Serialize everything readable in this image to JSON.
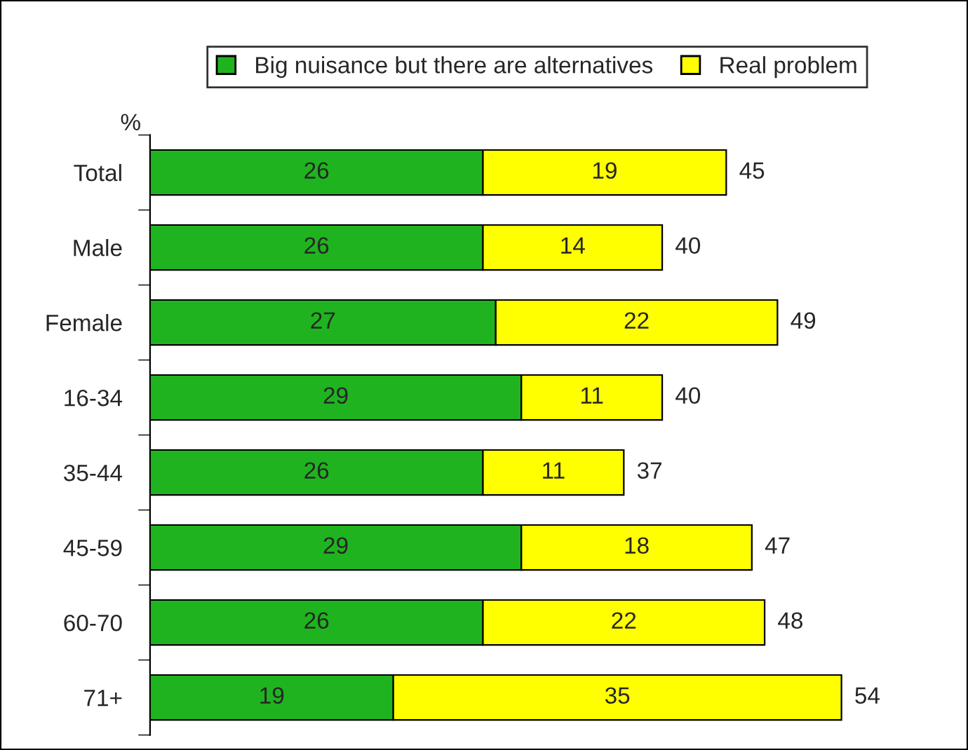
{
  "chart_data": {
    "type": "bar",
    "orientation": "horizontal",
    "stacked": true,
    "ylabel": "%",
    "categories": [
      "Total",
      "Male",
      "Female",
      "16-34",
      "35-44",
      "45-59",
      "60-70",
      "71+"
    ],
    "series": [
      {
        "name": "Big nuisance but there are alternatives",
        "color": "#1fb41f",
        "values": [
          26,
          26,
          27,
          29,
          26,
          29,
          26,
          19
        ]
      },
      {
        "name": "Real problem",
        "color": "#ffff00",
        "values": [
          19,
          14,
          22,
          11,
          11,
          18,
          22,
          35
        ]
      }
    ],
    "totals": [
      "45",
      "40",
      "49",
      "40",
      "37",
      "47",
      "48",
      "54"
    ],
    "data_labels": true,
    "legend": "top",
    "tick_labels": "y",
    "grid": false
  }
}
